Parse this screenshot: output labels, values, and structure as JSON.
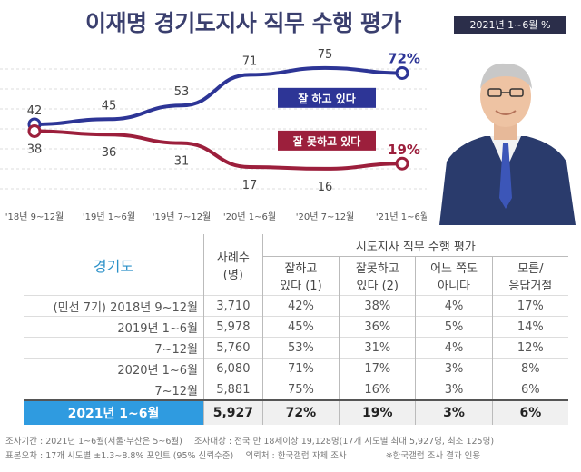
{
  "title": "이재명 경기도지사 직무 수행 평가",
  "period_badge": "2021년 1~6월  %",
  "chart_data": {
    "type": "line",
    "categories": [
      "'18년 9~12월",
      "'19년 1~6월",
      "'19년 7~12월",
      "'20년 1~6월",
      "'20년 7~12월",
      "'21년 1~6월"
    ],
    "series": [
      {
        "name": "잘 하고 있다",
        "values": [
          42,
          45,
          53,
          71,
          75,
          72
        ],
        "color": "#2d3596"
      },
      {
        "name": "잘 못하고 있다",
        "values": [
          38,
          36,
          31,
          17,
          16,
          19
        ],
        "color": "#9c1f3c"
      }
    ],
    "last_labels": [
      "72%",
      "19%"
    ],
    "ylim": [
      0,
      85
    ]
  },
  "table": {
    "region": "경기도",
    "sample_header": "사례수\n(명)",
    "group_header": "시도지사 직무 수행 평가",
    "columns": [
      "잘하고\n있다 (1)",
      "잘못하고\n있다 (2)",
      "어느 쪽도\n아니다",
      "모름/\n응답거절"
    ],
    "rows": [
      {
        "label": "(민선 7기) 2018년  9~12월",
        "n": "3,710",
        "v": [
          "42%",
          "38%",
          "4%",
          "17%"
        ]
      },
      {
        "label": "2019년  1~6월",
        "n": "5,978",
        "v": [
          "45%",
          "36%",
          "5%",
          "14%"
        ]
      },
      {
        "label": "7~12월",
        "n": "5,760",
        "v": [
          "53%",
          "31%",
          "4%",
          "12%"
        ]
      },
      {
        "label": "2020년  1~6월",
        "n": "6,080",
        "v": [
          "71%",
          "17%",
          "3%",
          "8%"
        ]
      },
      {
        "label": "7~12월",
        "n": "5,881",
        "v": [
          "75%",
          "16%",
          "3%",
          "6%"
        ]
      }
    ],
    "highlight": {
      "label": "2021년  1~6월",
      "n": "5,927",
      "v": [
        "72%",
        "19%",
        "3%",
        "6%"
      ]
    }
  },
  "footer": {
    "line1a": "조사기간 : 2021년 1~6월(서울·부산은 5~6월)",
    "line1b": "조사대상 : 전국 만 18세이상 19,128명(17개 시도별 최대 5,927명, 최소 125명)",
    "line2a": "표본오차 : 17개 시도별 ±1.3~8.8% 포인트 (95% 신뢰수준)",
    "line2b": "의뢰처 : 한국갤럽 자체 조사",
    "line2c": "※한국갤럽 조사 결과 인용"
  }
}
